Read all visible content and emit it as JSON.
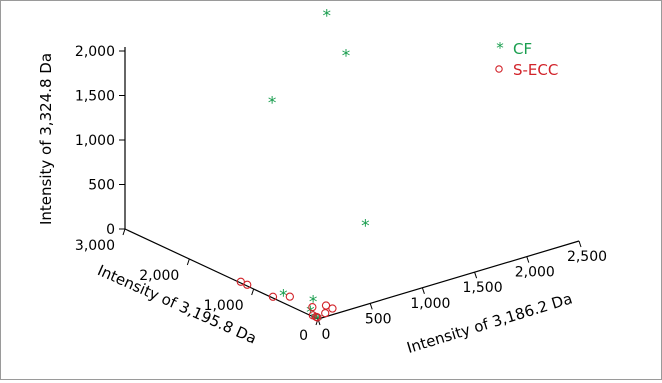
{
  "chart_data": {
    "type": "scatter",
    "projection": "3d",
    "axes": {
      "z": {
        "label": "Intensity of 3,324.8 Da",
        "ticks": [
          0,
          500,
          1000,
          1500,
          2000
        ],
        "tick_labels": [
          "0",
          "500",
          "1,000",
          "1,500",
          "2,000"
        ],
        "range": [
          0,
          2000
        ]
      },
      "y": {
        "label": "Intensity of 3,195.8 Da",
        "ticks": [
          0,
          1000,
          2000,
          3000
        ],
        "tick_labels": [
          "0",
          "1,000",
          "2,000",
          "3,000"
        ],
        "range": [
          0,
          3000
        ]
      },
      "x": {
        "label": "Intensity of 3,186.2 Da",
        "ticks": [
          0,
          500,
          1000,
          1500,
          2000,
          2500
        ],
        "tick_labels": [
          "0",
          "500",
          "1,000",
          "1,500",
          "2,000",
          "2,500"
        ],
        "range": [
          0,
          2500
        ]
      }
    },
    "legend_position": "top-right",
    "series": [
      {
        "name": "CF",
        "marker": "asterisk",
        "color": "#1a9e4f",
        "points": [
          [
            700,
            1000,
            2050
          ],
          [
            700,
            700,
            1800
          ],
          [
            300,
            1200,
            1400
          ],
          [
            700,
            400,
            500
          ],
          [
            200,
            400,
            10
          ],
          [
            100,
            700,
            10
          ],
          [
            50,
            200,
            10
          ],
          [
            0,
            0,
            10
          ],
          [
            0,
            50,
            10
          ]
        ]
      },
      {
        "name": "S-ECC",
        "marker": "circle",
        "color": "#d2232a",
        "points": [
          [
            0,
            1200,
            10
          ],
          [
            0,
            1100,
            10
          ],
          [
            0,
            700,
            10
          ],
          [
            100,
            600,
            10
          ],
          [
            100,
            250,
            10
          ],
          [
            200,
            200,
            10
          ],
          [
            200,
            100,
            10
          ],
          [
            100,
            50,
            10
          ],
          [
            0,
            80,
            10
          ],
          [
            0,
            10,
            10
          ],
          [
            0,
            30,
            10
          ]
        ]
      }
    ]
  }
}
